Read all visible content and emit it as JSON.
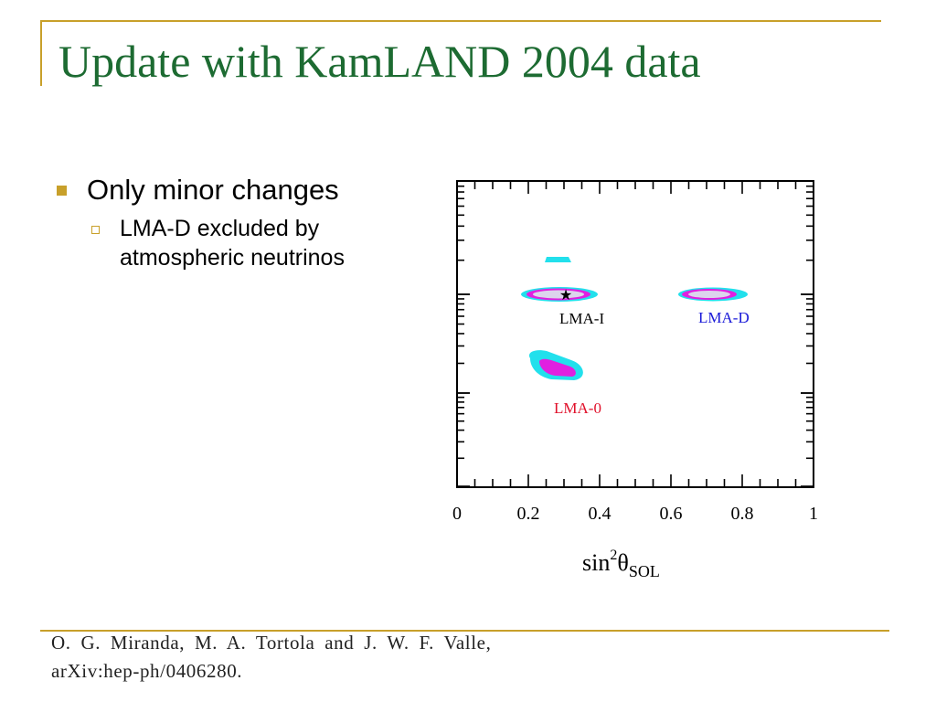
{
  "slide": {
    "title": "Update with KamLAND 2004 data",
    "bullets": [
      {
        "text": "Only minor changes",
        "sub": [
          {
            "text": "LMA-D excluded by atmospheric neutrinos"
          }
        ]
      }
    ],
    "citation_line1": "O. G. Miranda, M. A. Tortola and J. W. F. Valle,",
    "citation_line2": "arXiv:hep-ph/0406280.",
    "accent_color": "#c8a02a",
    "title_color": "#1d6b32"
  },
  "chart_data": {
    "type": "contour",
    "xlabel": "sin²θSOL",
    "xlim": [
      0,
      1
    ],
    "xticks": [
      "0",
      "0.2",
      "0.4",
      "0.6",
      "0.8",
      "1"
    ],
    "y_tick_labels_visible": false,
    "best_fit_marker": {
      "symbol": "★",
      "x": 0.3
    },
    "regions": [
      {
        "label": "LMA-I",
        "label_color": "#000000",
        "x_center": 0.29,
        "x_span": [
          0.19,
          0.4
        ]
      },
      {
        "label": "LMA-D",
        "label_color": "#1a1ad8",
        "x_center": 0.7,
        "x_span": [
          0.61,
          0.8
        ]
      },
      {
        "label": "LMA-0",
        "label_color": "#e0102a",
        "x_center": 0.28,
        "x_span": [
          0.19,
          0.36
        ]
      }
    ],
    "contour_colors": {
      "outer": "#22e0ec",
      "middle": "#e020e0",
      "inner": "#dcd4ec"
    }
  }
}
